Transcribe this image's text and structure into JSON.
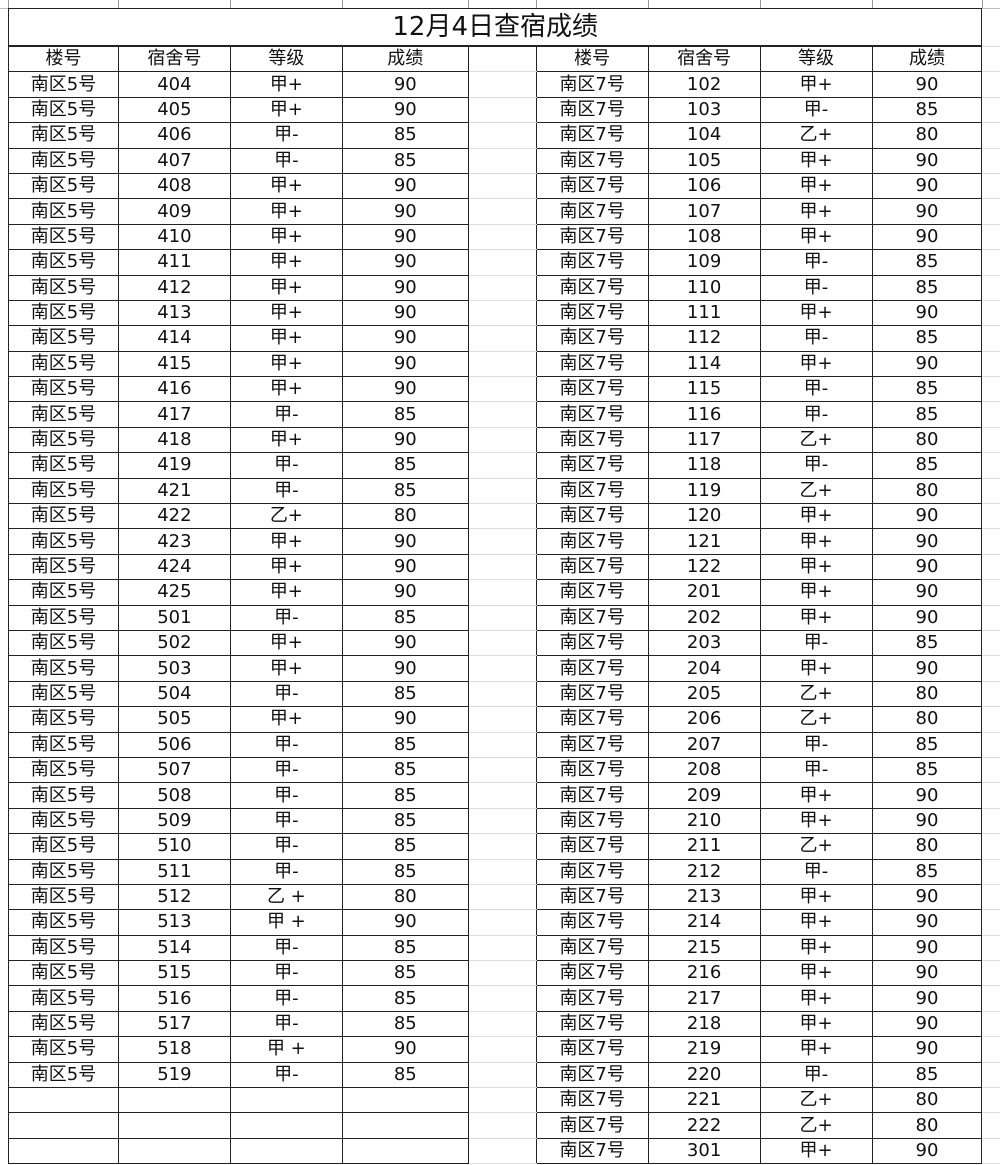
{
  "title": "12月4日查宿成绩",
  "headers": [
    "楼号",
    "宿舍号",
    "等级",
    "成绩"
  ],
  "left": [
    [
      "南区5号",
      "404",
      "甲+",
      "90"
    ],
    [
      "南区5号",
      "405",
      "甲+",
      "90"
    ],
    [
      "南区5号",
      "406",
      "甲-",
      "85"
    ],
    [
      "南区5号",
      "407",
      "甲-",
      "85"
    ],
    [
      "南区5号",
      "408",
      "甲+",
      "90"
    ],
    [
      "南区5号",
      "409",
      "甲+",
      "90"
    ],
    [
      "南区5号",
      "410",
      "甲+",
      "90"
    ],
    [
      "南区5号",
      "411",
      "甲+",
      "90"
    ],
    [
      "南区5号",
      "412",
      "甲+",
      "90"
    ],
    [
      "南区5号",
      "413",
      "甲+",
      "90"
    ],
    [
      "南区5号",
      "414",
      "甲+",
      "90"
    ],
    [
      "南区5号",
      "415",
      "甲+",
      "90"
    ],
    [
      "南区5号",
      "416",
      "甲+",
      "90"
    ],
    [
      "南区5号",
      "417",
      "甲-",
      "85"
    ],
    [
      "南区5号",
      "418",
      "甲+",
      "90"
    ],
    [
      "南区5号",
      "419",
      "甲-",
      "85"
    ],
    [
      "南区5号",
      "421",
      "甲-",
      "85"
    ],
    [
      "南区5号",
      "422",
      "乙+",
      "80"
    ],
    [
      "南区5号",
      "423",
      "甲+",
      "90"
    ],
    [
      "南区5号",
      "424",
      "甲+",
      "90"
    ],
    [
      "南区5号",
      "425",
      "甲+",
      "90"
    ],
    [
      "南区5号",
      "501",
      "甲-",
      "85"
    ],
    [
      "南区5号",
      "502",
      "甲+",
      "90"
    ],
    [
      "南区5号",
      "503",
      "甲+",
      "90"
    ],
    [
      "南区5号",
      "504",
      "甲-",
      "85"
    ],
    [
      "南区5号",
      "505",
      "甲+",
      "90"
    ],
    [
      "南区5号",
      "506",
      "甲-",
      "85"
    ],
    [
      "南区5号",
      "507",
      "甲-",
      "85"
    ],
    [
      "南区5号",
      "508",
      "甲-",
      "85"
    ],
    [
      "南区5号",
      "509",
      "甲-",
      "85"
    ],
    [
      "南区5号",
      "510",
      "甲-",
      "85"
    ],
    [
      "南区5号",
      "511",
      "甲-",
      "85"
    ],
    [
      "南区5号",
      "512",
      "乙 +",
      "80"
    ],
    [
      "南区5号",
      "513",
      "甲 +",
      "90"
    ],
    [
      "南区5号",
      "514",
      "甲-",
      "85"
    ],
    [
      "南区5号",
      "515",
      "甲-",
      "85"
    ],
    [
      "南区5号",
      "516",
      "甲-",
      "85"
    ],
    [
      "南区5号",
      "517",
      "甲-",
      "85"
    ],
    [
      "南区5号",
      "518",
      "甲 +",
      "90"
    ],
    [
      "南区5号",
      "519",
      "甲-",
      "85"
    ]
  ],
  "right": [
    [
      "南区7号",
      "102",
      "甲+",
      "90"
    ],
    [
      "南区7号",
      "103",
      "甲-",
      "85"
    ],
    [
      "南区7号",
      "104",
      "乙+",
      "80"
    ],
    [
      "南区7号",
      "105",
      "甲+",
      "90"
    ],
    [
      "南区7号",
      "106",
      "甲+",
      "90"
    ],
    [
      "南区7号",
      "107",
      "甲+",
      "90"
    ],
    [
      "南区7号",
      "108",
      "甲+",
      "90"
    ],
    [
      "南区7号",
      "109",
      "甲-",
      "85"
    ],
    [
      "南区7号",
      "110",
      "甲-",
      "85"
    ],
    [
      "南区7号",
      "111",
      "甲+",
      "90"
    ],
    [
      "南区7号",
      "112",
      "甲-",
      "85"
    ],
    [
      "南区7号",
      "114",
      "甲+",
      "90"
    ],
    [
      "南区7号",
      "115",
      "甲-",
      "85"
    ],
    [
      "南区7号",
      "116",
      "甲-",
      "85"
    ],
    [
      "南区7号",
      "117",
      "乙+",
      "80"
    ],
    [
      "南区7号",
      "118",
      "甲-",
      "85"
    ],
    [
      "南区7号",
      "119",
      "乙+",
      "80"
    ],
    [
      "南区7号",
      "120",
      "甲+",
      "90"
    ],
    [
      "南区7号",
      "121",
      "甲+",
      "90"
    ],
    [
      "南区7号",
      "122",
      "甲+",
      "90"
    ],
    [
      "南区7号",
      "201",
      "甲+",
      "90"
    ],
    [
      "南区7号",
      "202",
      "甲+",
      "90"
    ],
    [
      "南区7号",
      "203",
      "甲-",
      "85"
    ],
    [
      "南区7号",
      "204",
      "甲+",
      "90"
    ],
    [
      "南区7号",
      "205",
      "乙+",
      "80"
    ],
    [
      "南区7号",
      "206",
      "乙+",
      "80"
    ],
    [
      "南区7号",
      "207",
      "甲-",
      "85"
    ],
    [
      "南区7号",
      "208",
      "甲-",
      "85"
    ],
    [
      "南区7号",
      "209",
      "甲+",
      "90"
    ],
    [
      "南区7号",
      "210",
      "甲+",
      "90"
    ],
    [
      "南区7号",
      "211",
      "乙+",
      "80"
    ],
    [
      "南区7号",
      "212",
      "甲-",
      "85"
    ],
    [
      "南区7号",
      "213",
      "甲+",
      "90"
    ],
    [
      "南区7号",
      "214",
      "甲+",
      "90"
    ],
    [
      "南区7号",
      "215",
      "甲+",
      "90"
    ],
    [
      "南区7号",
      "216",
      "甲+",
      "90"
    ],
    [
      "南区7号",
      "217",
      "甲+",
      "90"
    ],
    [
      "南区7号",
      "218",
      "甲+",
      "90"
    ],
    [
      "南区7号",
      "219",
      "甲+",
      "90"
    ],
    [
      "南区7号",
      "220",
      "甲-",
      "85"
    ],
    [
      "南区7号",
      "221",
      "乙+",
      "80"
    ],
    [
      "南区7号",
      "222",
      "乙+",
      "80"
    ],
    [
      "南区7号",
      "301",
      "甲+",
      "90"
    ]
  ]
}
